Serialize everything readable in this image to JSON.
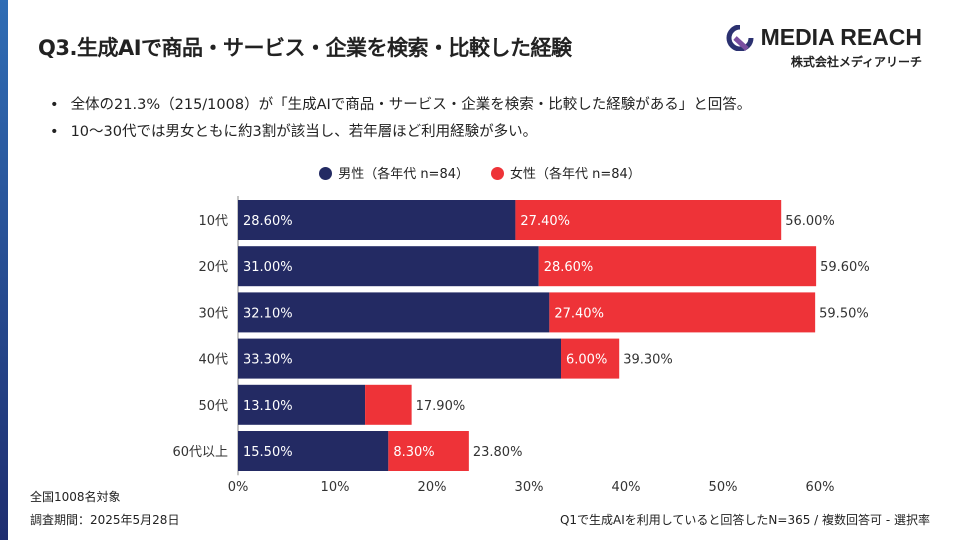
{
  "title": "Q3.生成AIで商品・サービス・企業を検索・比較した経験",
  "logo": {
    "name": "MEDIA REACH",
    "sub": "株式会社メディアリーチ"
  },
  "bullets": [
    "全体の21.3%（215/1008）が「生成AIで商品・サービス・企業を検索・比較した経験がある」と回答。",
    "10〜30代では男女ともに約3割が該当し、若年層ほど利用経験が多い。"
  ],
  "notes": {
    "left1": "全国1008名対象",
    "left2": "調査期間：2025年5月28日",
    "right": "Q1で生成AIを利用していると回答したN=365 / 複数回答可 - 選択率"
  },
  "chart_data": {
    "type": "bar",
    "stacked": true,
    "orientation": "horizontal",
    "categories": [
      "10代",
      "20代",
      "30代",
      "40代",
      "50代",
      "60代以上"
    ],
    "series": [
      {
        "name": "男性（各年代 n=84）",
        "color": "#232a63",
        "values": [
          28.6,
          31.0,
          32.1,
          33.3,
          13.1,
          15.5
        ],
        "labels": [
          "28.60%",
          "31.00%",
          "32.10%",
          "33.30%",
          "13.10%",
          "15.50%"
        ]
      },
      {
        "name": "女性（各年代 n=84）",
        "color": "#ee3338",
        "values": [
          27.4,
          28.6,
          27.4,
          6.0,
          4.8,
          8.3
        ],
        "labels": [
          "27.40%",
          "28.60%",
          "27.40%",
          "6.00%",
          "",
          "8.30%"
        ]
      }
    ],
    "totals": [
      "56.00%",
      "59.60%",
      "59.50%",
      "39.30%",
      "17.90%",
      "23.80%"
    ],
    "xlim": [
      0,
      60
    ],
    "xticks": [
      "0%",
      "10%",
      "20%",
      "30%",
      "40%",
      "50%",
      "60%"
    ],
    "legend": "top"
  }
}
